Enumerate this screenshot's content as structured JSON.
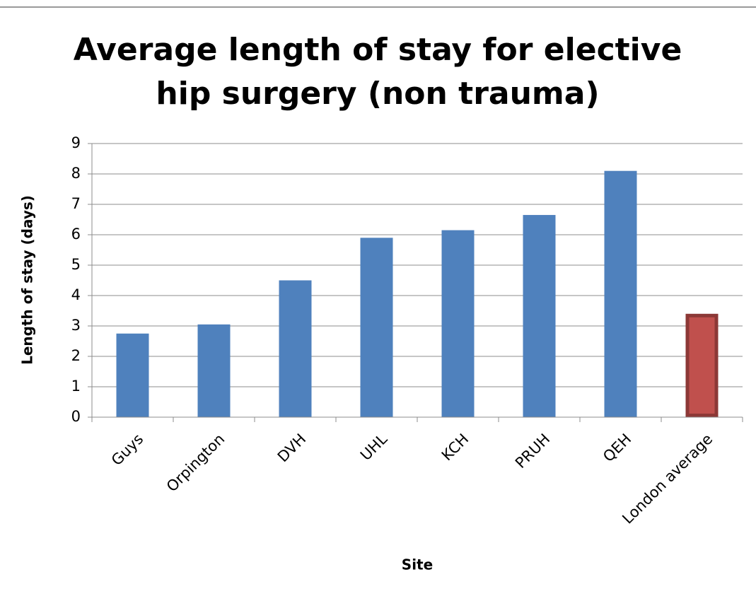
{
  "chart_data": {
    "type": "bar",
    "title": "Average length of stay for elective hip surgery (non trauma)",
    "xlabel": "Site",
    "ylabel": "Length of stay (days)",
    "categories": [
      "Guys",
      "Orpington",
      "DVH",
      "UHL",
      "KCH",
      "PRUH",
      "QEH",
      "London average"
    ],
    "values": [
      2.75,
      3.05,
      4.5,
      5.9,
      6.15,
      6.65,
      8.1,
      3.4
    ],
    "colors": [
      "#4f81bd",
      "#4f81bd",
      "#4f81bd",
      "#4f81bd",
      "#4f81bd",
      "#4f81bd",
      "#4f81bd",
      "#c0504d"
    ],
    "edge_colors": [
      "#4f81bd",
      "#4f81bd",
      "#4f81bd",
      "#4f81bd",
      "#4f81bd",
      "#4f81bd",
      "#4f81bd",
      "#8c3836"
    ],
    "ylim": [
      0,
      9
    ],
    "yticks": [
      0,
      1,
      2,
      3,
      4,
      5,
      6,
      7,
      8,
      9
    ],
    "grid": true
  }
}
